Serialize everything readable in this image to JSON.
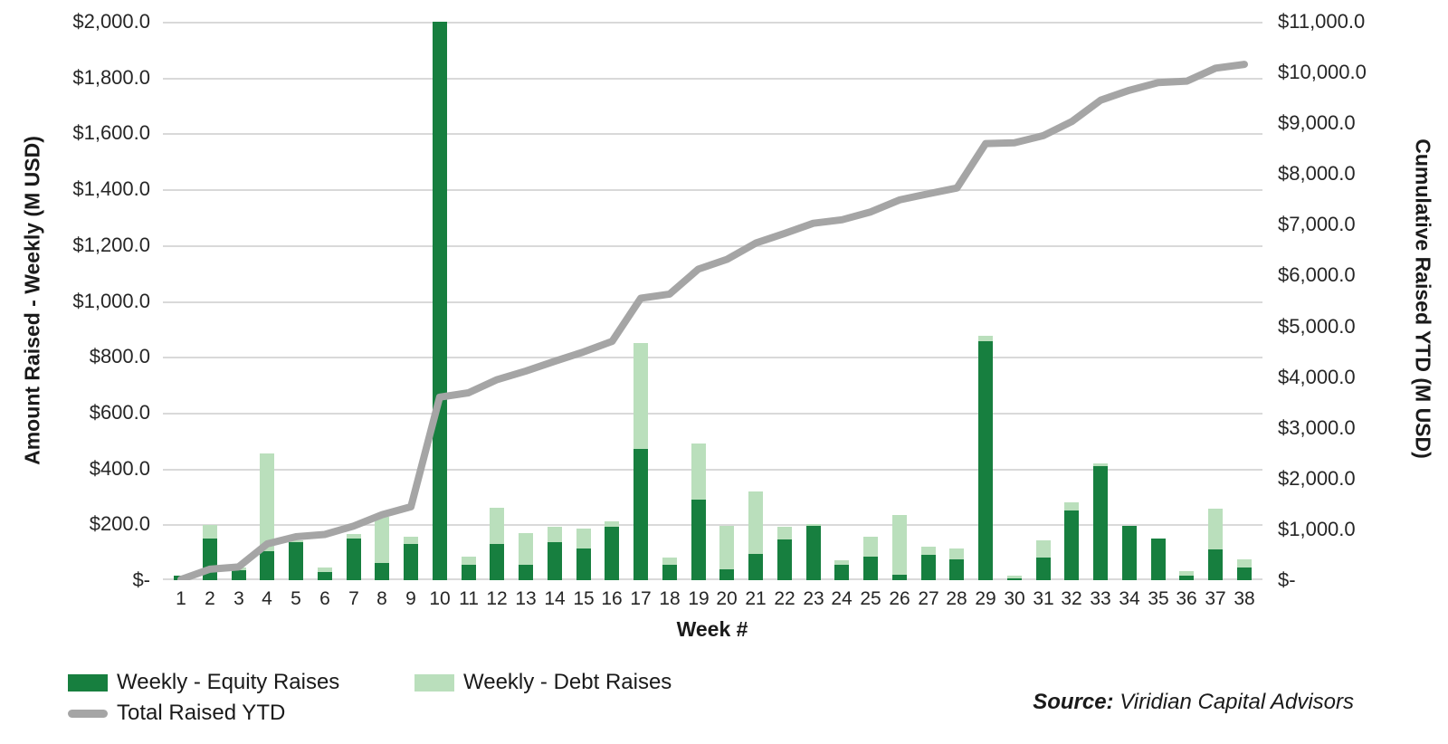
{
  "axes": {
    "left": {
      "title": "Amount Raised - Weekly (M USD)",
      "ticks": [
        "$2,000.0",
        "$1,800.0",
        "$1,600.0",
        "$1,400.0",
        "$1,200.0",
        "$1,000.0",
        "$800.0",
        "$600.0",
        "$400.0",
        "$200.0",
        "$-"
      ]
    },
    "right": {
      "title": "Cumulative Raised YTD (M USD)",
      "ticks": [
        "$11,000.0",
        "$10,000.0",
        "$9,000.0",
        "$8,000.0",
        "$7,000.0",
        "$6,000.0",
        "$5,000.0",
        "$4,000.0",
        "$3,000.0",
        "$2,000.0",
        "$1,000.0",
        "$-"
      ]
    },
    "x": {
      "title": "Week #"
    }
  },
  "legend": {
    "equity": "Weekly - Equity Raises",
    "debt": "Weekly - Debt Raises",
    "ytd": "Total Raised YTD"
  },
  "source": {
    "label": "Source:",
    "name": " Viridian Capital Advisors"
  },
  "colors": {
    "equity": "#177f3f",
    "debt": "#badfbc",
    "line": "#a5a5a5",
    "grid": "#d9d9d9"
  },
  "chart_data": {
    "type": "bar",
    "subtype": "stacked-bars-with-secondary-axis-line",
    "title": "",
    "xlabel": "Week #",
    "ylabel_left": "Amount Raised - Weekly (M USD)",
    "ylabel_right": "Cumulative Raised YTD (M USD)",
    "ylim_left": [
      0,
      2000
    ],
    "ytick_step_left": 200,
    "ylim_right": [
      0,
      11000
    ],
    "ytick_step_right": 1000,
    "grid": true,
    "legend_position": "bottom-left",
    "x": [
      1,
      2,
      3,
      4,
      5,
      6,
      7,
      8,
      9,
      10,
      11,
      12,
      13,
      14,
      15,
      16,
      17,
      18,
      19,
      20,
      21,
      22,
      23,
      24,
      25,
      26,
      27,
      28,
      29,
      30,
      31,
      32,
      33,
      34,
      35,
      36,
      37,
      38
    ],
    "series": [
      {
        "name": "Weekly - Equity Raises",
        "kind": "bar-stack",
        "axis": "left",
        "color": "#177f3f",
        "values": [
          15,
          150,
          35,
          105,
          135,
          30,
          150,
          60,
          130,
          2160,
          55,
          130,
          55,
          135,
          115,
          190,
          470,
          55,
          290,
          40,
          95,
          145,
          195,
          55,
          85,
          20,
          90,
          75,
          855,
          5,
          80,
          250,
          410,
          195,
          150,
          15,
          110,
          45
        ]
      },
      {
        "name": "Weekly - Debt Raises",
        "kind": "bar-stack",
        "axis": "left",
        "color": "#badfbc",
        "values": [
          0,
          50,
          10,
          350,
          5,
          15,
          15,
          165,
          25,
          0,
          30,
          130,
          115,
          55,
          70,
          20,
          380,
          25,
          200,
          155,
          225,
          45,
          5,
          15,
          70,
          215,
          30,
          40,
          20,
          10,
          60,
          30,
          10,
          0,
          0,
          15,
          145,
          30
        ]
      },
      {
        "name": "Total Raised YTD",
        "kind": "line",
        "axis": "right",
        "color": "#a5a5a5",
        "values": [
          15,
          215,
          260,
          715,
          855,
          900,
          1065,
          1290,
          1445,
          3605,
          3690,
          3950,
          4120,
          4310,
          4495,
          4705,
          5555,
          5635,
          6125,
          6320,
          6640,
          6830,
          7030,
          7100,
          7255,
          7490,
          7610,
          7725,
          8600,
          8615,
          8755,
          9035,
          9455,
          9650,
          9800,
          9830,
          10085,
          10160
        ]
      }
    ]
  }
}
